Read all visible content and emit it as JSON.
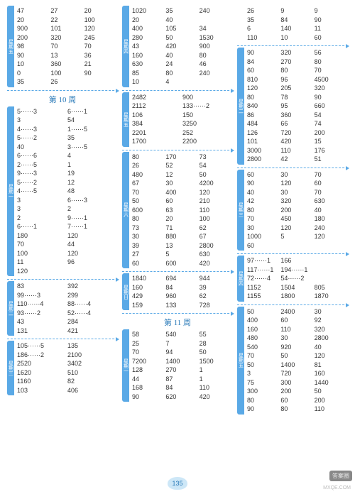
{
  "page_number": "135",
  "watermark_line1": "答案圈",
  "watermark_line2": "MXQE.COM",
  "columns": [
    {
      "blocks": [
        {
          "tab": "星期五",
          "cols": 3,
          "cells": [
            "47",
            "27",
            "20",
            "20",
            "22",
            "100",
            "900",
            "101",
            "120",
            "200",
            "320",
            "245",
            "98",
            "70",
            "70",
            "90",
            "13",
            "36",
            "10",
            "360",
            "21",
            "0",
            "100",
            "90",
            "35",
            "26",
            ""
          ]
        },
        {
          "type": "sep"
        },
        {
          "type": "week",
          "label": "第 10 周"
        },
        {
          "tab": "星期一",
          "cols": 2,
          "cells": [
            "5······3",
            "6······1",
            "3",
            "54",
            "4······3",
            "1······5",
            "5······2",
            "35",
            "40",
            "3······5",
            "6······6",
            "4",
            "2······5",
            "1",
            "9······3",
            "19",
            "5······2",
            "12",
            "4······5",
            "48",
            "3",
            "6······3",
            "3",
            "2",
            "2",
            "9······1",
            "6······1",
            "7······1",
            "180",
            "120",
            "70",
            "44",
            "100",
            "120",
            "11",
            "96",
            "120",
            ""
          ]
        },
        {
          "type": "sep"
        },
        {
          "tab": "星期二",
          "cols": 2,
          "cells": [
            "83",
            "392",
            "99······3",
            "299",
            "110······4",
            "88······4",
            "93······2",
            "52······4",
            "43",
            "284",
            "131",
            "421"
          ]
        },
        {
          "type": "sep"
        },
        {
          "tab": "星期三",
          "cols": 2,
          "cells": [
            "105······5",
            "135",
            "186······2",
            "2100",
            "2520",
            "3402",
            "1620",
            "510",
            "1160",
            "82",
            "103",
            "406"
          ]
        }
      ]
    },
    {
      "blocks": [
        {
          "tab": "星期四",
          "cols": 3,
          "cells": [
            "1020",
            "35",
            "240",
            "20",
            "40",
            "",
            "400",
            "105",
            "34",
            "280",
            "50",
            "1530",
            "43",
            "420",
            "900",
            "160",
            "40",
            "80",
            "630",
            "24",
            "46",
            "85",
            "80",
            "240",
            "10",
            "4",
            ""
          ]
        },
        {
          "type": "sep"
        },
        {
          "tab": "星期五",
          "cols": 2,
          "cells": [
            "2482",
            "900",
            "2112",
            "133······2",
            "106",
            "150",
            "384",
            "3250",
            "2201",
            "252",
            "1700",
            "2200"
          ]
        },
        {
          "type": "sep"
        },
        {
          "tab": "星期六",
          "cols": 3,
          "cells": [
            "80",
            "170",
            "73",
            "26",
            "52",
            "54",
            "480",
            "12",
            "50",
            "67",
            "30",
            "4200",
            "70",
            "400",
            "120",
            "50",
            "60",
            "210",
            "600",
            "63",
            "110",
            "80",
            "20",
            "100",
            "73",
            "71",
            "62",
            "30",
            "880",
            "67",
            "39",
            "13",
            "2800",
            "27",
            "5",
            "630",
            "60",
            "600",
            "420"
          ]
        },
        {
          "type": "sep"
        },
        {
          "tab": "星期日",
          "cols": 3,
          "cells": [
            "1840",
            "694",
            "944",
            "160",
            "84",
            "39",
            "429",
            "960",
            "62",
            "159",
            "133",
            "728"
          ]
        },
        {
          "type": "sep"
        },
        {
          "type": "week",
          "label": "第 11 周"
        },
        {
          "tab": "星期一",
          "cols": 3,
          "cells": [
            "58",
            "540",
            "55",
            "25",
            "7",
            "28",
            "70",
            "94",
            "50",
            "7200",
            "1400",
            "1500",
            "128",
            "270",
            "1",
            "44",
            "87",
            "1",
            "168",
            "84",
            "110",
            "90",
            "620",
            "420"
          ]
        }
      ]
    },
    {
      "blocks": [
        {
          "cols": 3,
          "cells": [
            "26",
            "9",
            "9",
            "35",
            "84",
            "90",
            "6",
            "140",
            "11",
            "110",
            "10",
            "60"
          ]
        },
        {
          "type": "sep"
        },
        {
          "tab": "星期二",
          "cols": 3,
          "cells": [
            "90",
            "320",
            "56",
            "84",
            "270",
            "80",
            "60",
            "80",
            "70",
            "810",
            "96",
            "4500",
            "120",
            "205",
            "320",
            "80",
            "78",
            "90",
            "840",
            "95",
            "660",
            "86",
            "360",
            "54",
            "484",
            "66",
            "74",
            "126",
            "720",
            "200",
            "101",
            "420",
            "15",
            "3000",
            "110",
            "176",
            "2800",
            "42",
            "51"
          ]
        },
        {
          "type": "sep"
        },
        {
          "tab": "星期三",
          "cols": 3,
          "cells": [
            "60",
            "30",
            "70",
            "90",
            "120",
            "60",
            "40",
            "30",
            "70",
            "42",
            "320",
            "630",
            "80",
            "200",
            "40",
            "70",
            "450",
            "180",
            "30",
            "120",
            "240",
            "1000",
            "5",
            "120",
            "60",
            "",
            " "
          ]
        },
        {
          "type": "sep"
        },
        {
          "tab": "星期四",
          "cols": 3,
          "cells": [
            "97······1",
            "166",
            "",
            "117······1",
            "194······1",
            "",
            "72······4",
            "54······2",
            "",
            "1152",
            "1504",
            "805",
            "1155",
            "1800",
            "1870"
          ]
        },
        {
          "type": "sep"
        },
        {
          "tab": "星期五",
          "cols": 3,
          "cells": [
            "50",
            "2400",
            "30",
            "400",
            "60",
            "92",
            "160",
            "110",
            "320",
            "480",
            "30",
            "2800",
            "540",
            "920",
            "40",
            "70",
            "50",
            "120",
            "50",
            "1400",
            "81",
            "3",
            "720",
            "160",
            "75",
            "300",
            "1440",
            "300",
            "200",
            "50",
            "80",
            "60",
            "200",
            "90",
            "80",
            "110"
          ]
        }
      ]
    }
  ]
}
